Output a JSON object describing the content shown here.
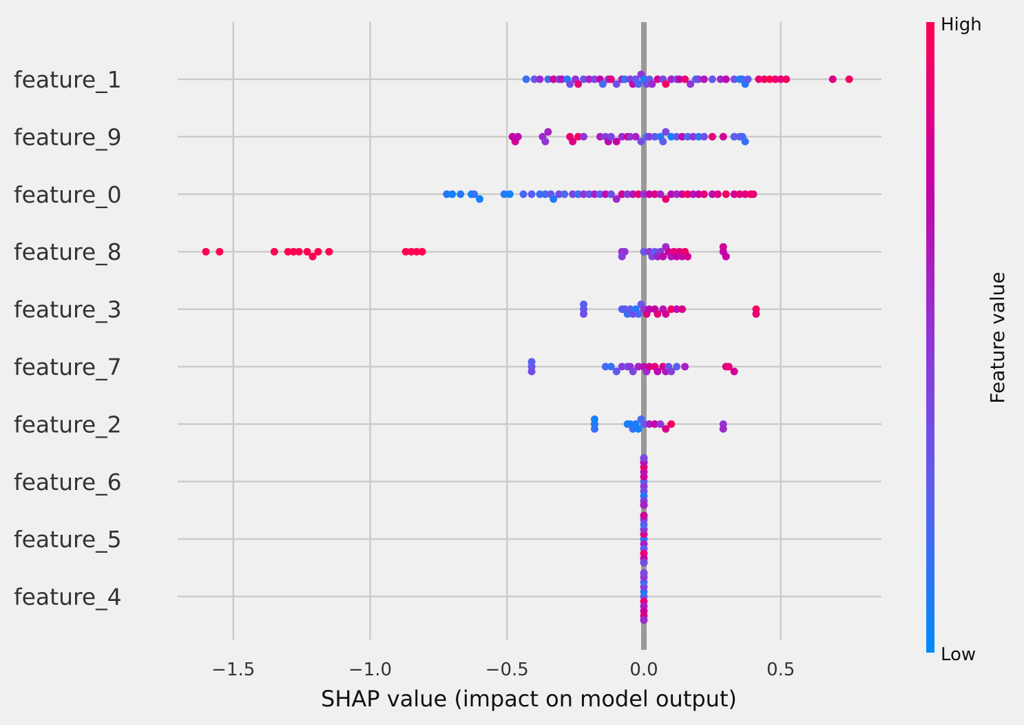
{
  "chart_data": {
    "type": "scatter",
    "subtype": "shap-beeswarm-summary",
    "xlabel": "SHAP value (impact on model output)",
    "ylabel": "",
    "xlim": [
      -1.75,
      0.87
    ],
    "xticks": [
      -1.5,
      -1.0,
      -0.5,
      0.0,
      0.5
    ],
    "xtick_labels": [
      "−1.5",
      "−1.0",
      "−0.5",
      "0.0",
      "0.5"
    ],
    "grid": true,
    "colorbar": {
      "label": "Feature value",
      "high_label": "High",
      "low_label": "Low",
      "colors": [
        "#008bfb",
        "#5b5ff1",
        "#9235d6",
        "#c700a6",
        "#ff0052"
      ]
    },
    "features": [
      {
        "name": "feature_1",
        "points": [
          [
            -0.43,
            0.15
          ],
          [
            -0.4,
            0.3
          ],
          [
            -0.38,
            0.55
          ],
          [
            -0.35,
            0.2
          ],
          [
            -0.33,
            0.8
          ],
          [
            -0.31,
            0.45
          ],
          [
            -0.3,
            0.65
          ],
          [
            -0.28,
            0.1
          ],
          [
            -0.27,
            0.35
          ],
          [
            -0.25,
            0.5
          ],
          [
            -0.24,
            0.9
          ],
          [
            -0.22,
            0.3
          ],
          [
            -0.2,
            0.6
          ],
          [
            -0.18,
            0.4
          ],
          [
            -0.16,
            0.75
          ],
          [
            -0.15,
            0.2
          ],
          [
            -0.13,
            0.55
          ],
          [
            -0.12,
            0.85
          ],
          [
            -0.1,
            0.35
          ],
          [
            -0.08,
            0.6
          ],
          [
            -0.07,
            0.15
          ],
          [
            -0.05,
            0.45
          ],
          [
            -0.04,
            0.7
          ],
          [
            -0.03,
            0.3
          ],
          [
            -0.02,
            0.2
          ],
          [
            -0.01,
            0.5
          ],
          [
            0.0,
            0.1
          ],
          [
            0.01,
            0.35
          ],
          [
            0.02,
            0.25
          ],
          [
            0.03,
            0.55
          ],
          [
            0.05,
            0.8
          ],
          [
            0.07,
            0.4
          ],
          [
            0.08,
            0.95
          ],
          [
            0.1,
            0.6
          ],
          [
            0.12,
            0.3
          ],
          [
            0.13,
            0.75
          ],
          [
            0.15,
            0.9
          ],
          [
            0.17,
            0.5
          ],
          [
            0.19,
            0.2
          ],
          [
            0.2,
            0.4
          ],
          [
            0.22,
            0.65
          ],
          [
            0.25,
            0.3
          ],
          [
            0.28,
            0.55
          ],
          [
            0.3,
            0.7
          ],
          [
            0.33,
            0.35
          ],
          [
            0.35,
            0.05
          ],
          [
            0.36,
            0.15
          ],
          [
            0.37,
            0.1
          ],
          [
            0.38,
            0.3
          ],
          [
            0.42,
            0.9
          ],
          [
            0.44,
            0.95
          ],
          [
            0.46,
            1.0
          ],
          [
            0.48,
            0.92
          ],
          [
            0.5,
            0.9
          ],
          [
            0.52,
            0.95
          ],
          [
            0.69,
            0.85
          ],
          [
            0.75,
            0.95
          ]
        ]
      },
      {
        "name": "feature_9",
        "points": [
          [
            -0.48,
            0.75
          ],
          [
            -0.47,
            0.8
          ],
          [
            -0.46,
            0.7
          ],
          [
            -0.37,
            0.55
          ],
          [
            -0.36,
            0.5
          ],
          [
            -0.35,
            0.6
          ],
          [
            -0.27,
            0.9
          ],
          [
            -0.26,
            0.85
          ],
          [
            -0.24,
            0.95
          ],
          [
            -0.22,
            0.5
          ],
          [
            -0.16,
            0.6
          ],
          [
            -0.14,
            0.45
          ],
          [
            -0.13,
            0.7
          ],
          [
            -0.12,
            0.4
          ],
          [
            -0.1,
            0.75
          ],
          [
            -0.08,
            0.55
          ],
          [
            -0.06,
            0.8
          ],
          [
            -0.05,
            0.5
          ],
          [
            -0.03,
            0.6
          ],
          [
            -0.01,
            0.35
          ],
          [
            0.01,
            0.2
          ],
          [
            0.02,
            0.45
          ],
          [
            0.04,
            0.3
          ],
          [
            0.06,
            0.1
          ],
          [
            0.07,
            0.25
          ],
          [
            0.08,
            0.4
          ],
          [
            0.1,
            0.05
          ],
          [
            0.12,
            0.3
          ],
          [
            0.14,
            0.7
          ],
          [
            0.16,
            0.2
          ],
          [
            0.18,
            0.5
          ],
          [
            0.2,
            0.1
          ],
          [
            0.22,
            0.35
          ],
          [
            0.25,
            0.9
          ],
          [
            0.29,
            0.8
          ],
          [
            0.33,
            0.25
          ],
          [
            0.35,
            0.3
          ],
          [
            0.36,
            0.2
          ],
          [
            0.37,
            0.15
          ]
        ]
      },
      {
        "name": "feature_0",
        "points": [
          [
            -0.72,
            0.1
          ],
          [
            -0.7,
            0.05
          ],
          [
            -0.67,
            0.1
          ],
          [
            -0.63,
            0.05
          ],
          [
            -0.62,
            0.15
          ],
          [
            -0.6,
            0.05
          ],
          [
            -0.51,
            0.1
          ],
          [
            -0.49,
            0.05
          ],
          [
            -0.44,
            0.2
          ],
          [
            -0.41,
            0.25
          ],
          [
            -0.38,
            0.15
          ],
          [
            -0.36,
            0.2
          ],
          [
            -0.34,
            0.3
          ],
          [
            -0.33,
            0.1
          ],
          [
            -0.31,
            0.35
          ],
          [
            -0.29,
            0.2
          ],
          [
            -0.26,
            0.4
          ],
          [
            -0.24,
            0.15
          ],
          [
            -0.22,
            0.5
          ],
          [
            -0.2,
            0.3
          ],
          [
            -0.18,
            0.6
          ],
          [
            -0.16,
            0.25
          ],
          [
            -0.14,
            0.7
          ],
          [
            -0.12,
            0.35
          ],
          [
            -0.1,
            0.55
          ],
          [
            -0.08,
            0.8
          ],
          [
            -0.06,
            0.45
          ],
          [
            -0.04,
            0.65
          ],
          [
            -0.02,
            0.9
          ],
          [
            0.0,
            0.5
          ],
          [
            0.02,
            0.75
          ],
          [
            0.04,
            0.85
          ],
          [
            0.06,
            0.6
          ],
          [
            0.08,
            0.9
          ],
          [
            0.1,
            0.7
          ],
          [
            0.12,
            0.55
          ],
          [
            0.14,
            0.8
          ],
          [
            0.16,
            0.95
          ],
          [
            0.18,
            0.65
          ],
          [
            0.2,
            0.75
          ],
          [
            0.22,
            0.9
          ],
          [
            0.25,
            0.7
          ],
          [
            0.27,
            0.85
          ],
          [
            0.3,
            0.95
          ],
          [
            0.33,
            0.8
          ],
          [
            0.35,
            0.9
          ],
          [
            0.37,
            0.85
          ],
          [
            0.39,
            0.95
          ],
          [
            0.4,
            0.9
          ]
        ]
      },
      {
        "name": "feature_8",
        "points": [
          [
            -1.6,
            1.0
          ],
          [
            -1.55,
            1.0
          ],
          [
            -1.35,
            1.0
          ],
          [
            -1.3,
            1.0
          ],
          [
            -1.28,
            1.0
          ],
          [
            -1.26,
            1.0
          ],
          [
            -1.23,
            1.0
          ],
          [
            -1.21,
            1.0
          ],
          [
            -1.19,
            1.0
          ],
          [
            -1.15,
            1.0
          ],
          [
            -0.87,
            1.0
          ],
          [
            -0.85,
            1.0
          ],
          [
            -0.83,
            1.0
          ],
          [
            -0.81,
            1.0
          ],
          [
            -0.08,
            0.55
          ],
          [
            -0.07,
            0.5
          ],
          [
            -0.08,
            0.45
          ],
          [
            0.0,
            0.3
          ],
          [
            0.02,
            0.5
          ],
          [
            0.03,
            0.4
          ],
          [
            0.04,
            0.25
          ],
          [
            0.05,
            0.6
          ],
          [
            0.06,
            0.45
          ],
          [
            0.07,
            0.7
          ],
          [
            0.08,
            0.55
          ],
          [
            0.09,
            0.8
          ],
          [
            0.1,
            0.65
          ],
          [
            0.11,
            0.9
          ],
          [
            0.12,
            0.75
          ],
          [
            0.13,
            0.85
          ],
          [
            0.14,
            0.7
          ],
          [
            0.15,
            0.95
          ],
          [
            0.16,
            0.8
          ],
          [
            0.29,
            0.7
          ],
          [
            0.3,
            0.75
          ],
          [
            0.29,
            0.8
          ]
        ]
      },
      {
        "name": "feature_3",
        "points": [
          [
            -0.22,
            0.3
          ],
          [
            -0.22,
            0.35
          ],
          [
            -0.22,
            0.25
          ],
          [
            -0.08,
            0.2
          ],
          [
            -0.07,
            0.3
          ],
          [
            -0.06,
            0.15
          ],
          [
            -0.05,
            0.25
          ],
          [
            -0.04,
            0.35
          ],
          [
            -0.03,
            0.1
          ],
          [
            -0.02,
            0.2
          ],
          [
            -0.01,
            0.3
          ],
          [
            0.0,
            0.5
          ],
          [
            0.01,
            0.85
          ],
          [
            0.02,
            0.7
          ],
          [
            0.04,
            0.75
          ],
          [
            0.05,
            0.9
          ],
          [
            0.07,
            0.65
          ],
          [
            0.08,
            0.8
          ],
          [
            0.1,
            0.95
          ],
          [
            0.12,
            0.7
          ],
          [
            0.14,
            0.85
          ],
          [
            0.41,
            0.95
          ],
          [
            0.41,
            0.9
          ]
        ]
      },
      {
        "name": "feature_7",
        "points": [
          [
            -0.41,
            0.3
          ],
          [
            -0.41,
            0.35
          ],
          [
            -0.41,
            0.25
          ],
          [
            -0.14,
            0.2
          ],
          [
            -0.12,
            0.15
          ],
          [
            -0.1,
            0.3
          ],
          [
            -0.08,
            0.45
          ],
          [
            -0.06,
            0.35
          ],
          [
            -0.05,
            0.5
          ],
          [
            -0.04,
            0.4
          ],
          [
            -0.02,
            0.6
          ],
          [
            0.0,
            0.7
          ],
          [
            0.01,
            0.55
          ],
          [
            0.02,
            0.8
          ],
          [
            0.04,
            0.9
          ],
          [
            0.05,
            0.7
          ],
          [
            0.07,
            0.85
          ],
          [
            0.08,
            0.65
          ],
          [
            0.09,
            0.3
          ],
          [
            0.1,
            0.45
          ],
          [
            0.12,
            0.25
          ],
          [
            0.15,
            0.6
          ],
          [
            0.3,
            0.85
          ],
          [
            0.31,
            0.9
          ],
          [
            0.33,
            0.8
          ]
        ]
      },
      {
        "name": "feature_2",
        "points": [
          [
            -0.18,
            0.1
          ],
          [
            -0.18,
            0.15
          ],
          [
            -0.18,
            0.05
          ],
          [
            -0.06,
            0.1
          ],
          [
            -0.05,
            0.05
          ],
          [
            -0.04,
            0.15
          ],
          [
            -0.03,
            0.1
          ],
          [
            -0.02,
            0.05
          ],
          [
            -0.01,
            0.2
          ],
          [
            0.0,
            0.25
          ],
          [
            0.02,
            0.6
          ],
          [
            0.04,
            0.75
          ],
          [
            0.06,
            0.5
          ],
          [
            0.08,
            0.85
          ],
          [
            0.1,
            0.95
          ],
          [
            0.29,
            0.5
          ],
          [
            0.29,
            0.55
          ]
        ]
      },
      {
        "name": "feature_6",
        "points": [
          [
            0.0,
            0.2
          ],
          [
            0.0,
            0.5
          ],
          [
            0.0,
            0.8
          ],
          [
            0.0,
            0.35
          ],
          [
            0.0,
            0.65
          ],
          [
            0.0,
            0.1
          ],
          [
            0.0,
            0.9
          ],
          [
            0.0,
            0.45
          ],
          [
            0.0,
            0.7
          ],
          [
            0.0,
            0.25
          ],
          [
            0.0,
            0.55
          ],
          [
            0.0,
            0.85
          ],
          [
            0.0,
            0.15
          ],
          [
            0.0,
            0.6
          ],
          [
            0.0,
            0.4
          ]
        ]
      },
      {
        "name": "feature_5",
        "points": [
          [
            0.0,
            0.1
          ],
          [
            0.0,
            0.6
          ],
          [
            0.0,
            0.85
          ],
          [
            0.0,
            0.3
          ],
          [
            0.0,
            0.5
          ],
          [
            0.0,
            0.9
          ],
          [
            0.0,
            0.2
          ],
          [
            0.0,
            0.75
          ],
          [
            0.0,
            0.4
          ],
          [
            0.0,
            0.65
          ],
          [
            0.0,
            0.05
          ],
          [
            0.0,
            0.95
          ],
          [
            0.0,
            0.55
          ],
          [
            0.0,
            0.35
          ],
          [
            0.0,
            0.8
          ]
        ]
      },
      {
        "name": "feature_4",
        "points": [
          [
            0.0,
            0.3
          ],
          [
            0.0,
            0.9
          ],
          [
            0.0,
            0.1
          ],
          [
            0.0,
            0.6
          ],
          [
            0.0,
            0.45
          ],
          [
            0.0,
            0.75
          ],
          [
            0.0,
            0.2
          ],
          [
            0.0,
            0.85
          ],
          [
            0.0,
            0.5
          ],
          [
            0.0,
            0.35
          ],
          [
            0.0,
            0.95
          ],
          [
            0.0,
            0.15
          ],
          [
            0.0,
            0.65
          ],
          [
            0.0,
            0.55
          ],
          [
            0.0,
            0.4
          ]
        ]
      }
    ]
  }
}
